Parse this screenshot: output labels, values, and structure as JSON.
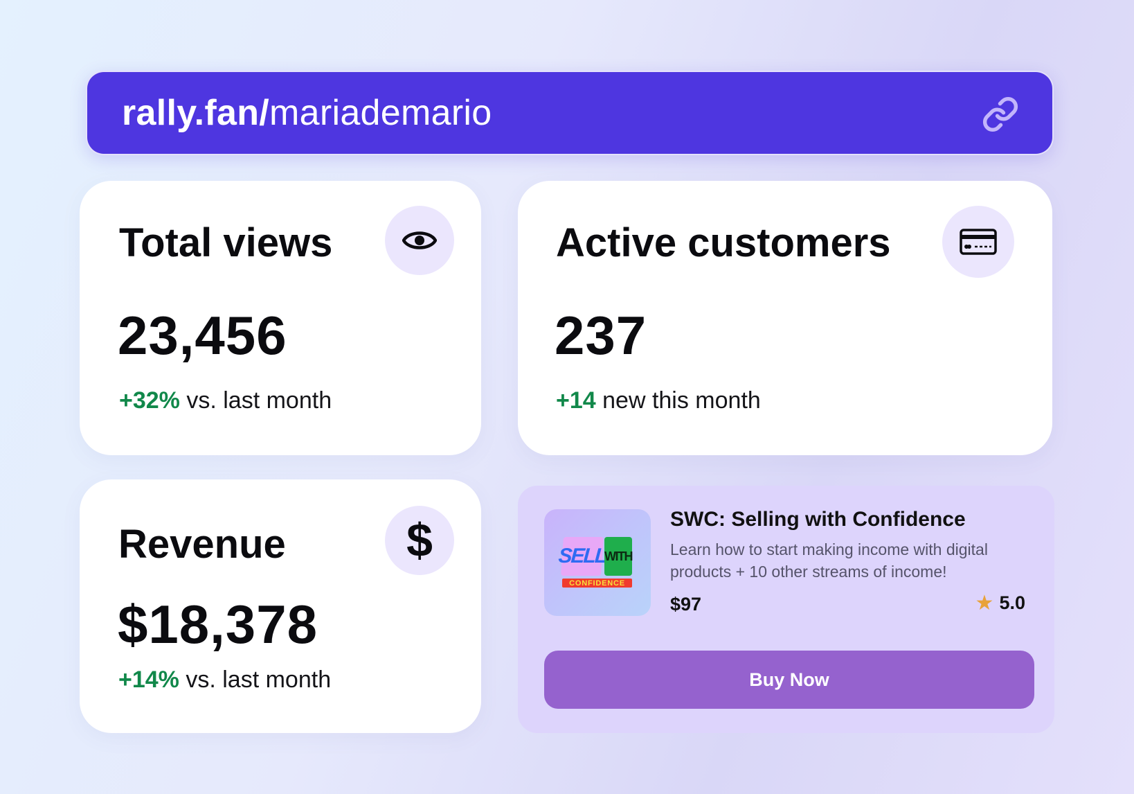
{
  "url_bar": {
    "domain": "rally.fan/",
    "handle": "mariademario"
  },
  "stats": {
    "views": {
      "title": "Total views",
      "value": "23,456",
      "delta": "+32%",
      "delta_suffix": " vs. last month"
    },
    "customers": {
      "title": "Active customers",
      "value": "237",
      "delta": "+14",
      "delta_suffix": " new this month"
    },
    "revenue": {
      "title": "Revenue",
      "value": "$18,378",
      "delta": "+14%",
      "delta_suffix": " vs. last month"
    }
  },
  "product": {
    "thumb_sell": "SELL",
    "thumb_with": "WITH",
    "thumb_confidence": "CONFIDENCE",
    "title": "SWC: Selling with Confidence",
    "description": "Learn how to start making income with digital products + 10 other streams of income!",
    "price": "$97",
    "rating": "5.0",
    "buy_label": "Buy Now"
  },
  "icons": {
    "link": "link-icon",
    "views": "eye-icon",
    "customers": "credit-card-icon",
    "revenue": "dollar-icon",
    "rating": "star-icon"
  },
  "colors": {
    "brand": "#4e36e0",
    "positive": "#11884a",
    "icon_bg": "#ebe6fd",
    "product_bg": "#ddd4fc",
    "button": "#9562ce",
    "star": "#e8a23a"
  }
}
